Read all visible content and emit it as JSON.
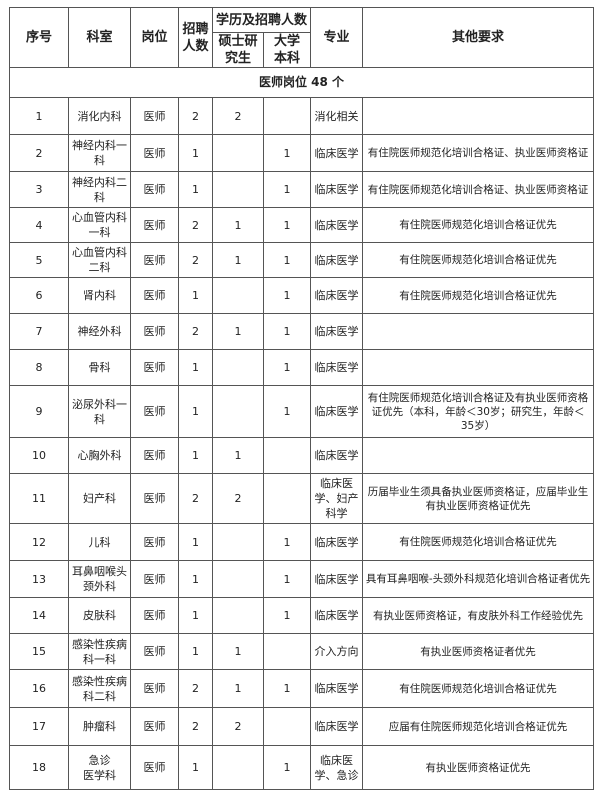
{
  "header": {
    "seq": "序号",
    "dept": "科室",
    "post": "岗位",
    "count": "招聘\n人数",
    "edu_group": "学历及招聘人数",
    "master": "硕士研\n究生",
    "bachelor": "大学\n本科",
    "major": "专业",
    "other": "其他要求"
  },
  "section_title": "医师岗位 48 个",
  "rows": [
    {
      "seq": "1",
      "dept": "消化内科",
      "post": "医师",
      "count": "2",
      "master": "2",
      "bachelor": "",
      "major": "消化相关",
      "other": ""
    },
    {
      "seq": "2",
      "dept": "神经内科一科",
      "post": "医师",
      "count": "1",
      "master": "",
      "bachelor": "1",
      "major": "临床医学",
      "other": "有住院医师规范化培训合格证、执业医师资格证"
    },
    {
      "seq": "3",
      "dept": "神经内科二科",
      "post": "医师",
      "count": "1",
      "master": "",
      "bachelor": "1",
      "major": "临床医学",
      "other": "有住院医师规范化培训合格证、执业医师资格证"
    },
    {
      "seq": "4",
      "dept": "心血管内科一科",
      "post": "医师",
      "count": "2",
      "master": "1",
      "bachelor": "1",
      "major": "临床医学",
      "other": "有住院医师规范化培训合格证优先"
    },
    {
      "seq": "5",
      "dept": "心血管内科二科",
      "post": "医师",
      "count": "2",
      "master": "1",
      "bachelor": "1",
      "major": "临床医学",
      "other": "有住院医师规范化培训合格证优先"
    },
    {
      "seq": "6",
      "dept": "肾内科",
      "post": "医师",
      "count": "1",
      "master": "",
      "bachelor": "1",
      "major": "临床医学",
      "other": "有住院医师规范化培训合格证优先"
    },
    {
      "seq": "7",
      "dept": "神经外科",
      "post": "医师",
      "count": "2",
      "master": "1",
      "bachelor": "1",
      "major": "临床医学",
      "other": ""
    },
    {
      "seq": "8",
      "dept": "骨科",
      "post": "医师",
      "count": "1",
      "master": "",
      "bachelor": "1",
      "major": "临床医学",
      "other": ""
    },
    {
      "seq": "9",
      "dept": "泌尿外科一科",
      "post": "医师",
      "count": "1",
      "master": "",
      "bachelor": "1",
      "major": "临床医学",
      "other": "有住院医师规范化培训合格证及有执业医师资格证优先（本科，年龄＜30岁；研究生，年龄＜35岁）"
    },
    {
      "seq": "10",
      "dept": "心胸外科",
      "post": "医师",
      "count": "1",
      "master": "1",
      "bachelor": "",
      "major": "临床医学",
      "other": ""
    },
    {
      "seq": "11",
      "dept": "妇产科",
      "post": "医师",
      "count": "2",
      "master": "2",
      "bachelor": "",
      "major": "临床医\n学、妇产\n科学",
      "other": "历届毕业生须具备执业医师资格证，应届毕业生有执业医师资格证优先"
    },
    {
      "seq": "12",
      "dept": "儿科",
      "post": "医师",
      "count": "1",
      "master": "",
      "bachelor": "1",
      "major": "临床医学",
      "other": "有住院医师规范化培训合格证优先"
    },
    {
      "seq": "13",
      "dept": "耳鼻咽喉头颈外科",
      "post": "医师",
      "count": "1",
      "master": "",
      "bachelor": "1",
      "major": "临床医学",
      "other": "具有耳鼻咽喉-头颈外科规范化培训合格证者优先"
    },
    {
      "seq": "14",
      "dept": "皮肤科",
      "post": "医师",
      "count": "1",
      "master": "",
      "bachelor": "1",
      "major": "临床医学",
      "other": "有执业医师资格证，有皮肤外科工作经验优先"
    },
    {
      "seq": "15",
      "dept": "感染性疾病科一科",
      "post": "医师",
      "count": "1",
      "master": "1",
      "bachelor": "",
      "major": "介入方向",
      "other": "有执业医师资格证者优先"
    },
    {
      "seq": "16",
      "dept": "感染性疾病科二科",
      "post": "医师",
      "count": "2",
      "master": "1",
      "bachelor": "1",
      "major": "临床医学",
      "other": "有住院医师规范化培训合格证优先"
    },
    {
      "seq": "17",
      "dept": "肿瘤科",
      "post": "医师",
      "count": "2",
      "master": "2",
      "bachelor": "",
      "major": "临床医学",
      "other": "应届有住院医师规范化培训合格证优先"
    },
    {
      "seq": "18",
      "dept": "急诊\n医学科",
      "post": "医师",
      "count": "1",
      "master": "",
      "bachelor": "1",
      "major": "临床医\n学、急诊",
      "other": "有执业医师资格证优先"
    }
  ]
}
